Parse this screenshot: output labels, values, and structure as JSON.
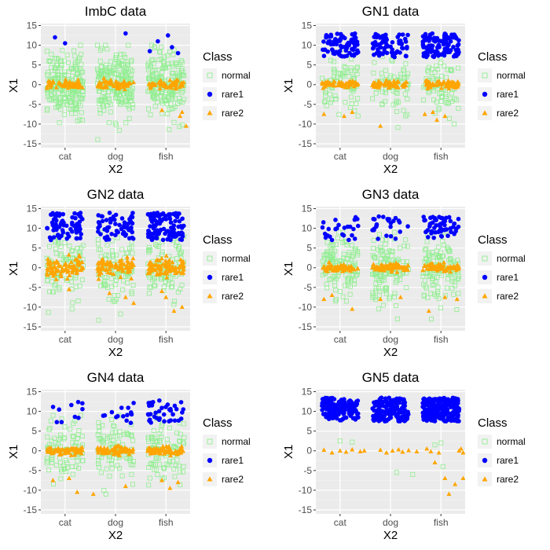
{
  "chart_data": [
    {
      "type": "scatter",
      "title": "ImbC data",
      "xlabel": "X2",
      "ylabel": "X1",
      "categories": [
        "cat",
        "dog",
        "fish"
      ],
      "ylim": [
        -16,
        15.5
      ],
      "yticks": [
        -15,
        -10,
        -5,
        0,
        5,
        10,
        15
      ],
      "legend_title": "Class",
      "series": [
        {
          "name": "normal",
          "shape": "open-square",
          "color": "#90EE90",
          "count_per_category": [
            200,
            200,
            200
          ],
          "spread_sd": 4.0,
          "center": 0,
          "tail_min": -14,
          "tail_max": 10
        },
        {
          "name": "rare1",
          "shape": "circle",
          "color": "#0000FF",
          "values": [
            [
              0.25,
              12
            ],
            [
              0.5,
              10.5
            ],
            [
              2.0,
              13
            ],
            [
              2.8,
              11
            ],
            [
              3.05,
              12.5
            ],
            [
              2.6,
              8.5
            ],
            [
              3.3,
              8
            ],
            [
              3.15,
              9.5
            ]
          ]
        },
        {
          "name": "rare2",
          "shape": "triangle",
          "color": "#FFA500",
          "count_per_category": [
            60,
            60,
            60
          ],
          "spread_sd": 0.5,
          "center": 0,
          "values": [
            [
              2.9,
              -6.5
            ],
            [
              3.35,
              -8
            ],
            [
              3.5,
              -10.5
            ],
            [
              3.4,
              -7
            ]
          ]
        }
      ]
    },
    {
      "type": "scatter",
      "title": "GN1 data",
      "xlabel": "X2",
      "ylabel": "X1",
      "categories": [
        "cat",
        "dog",
        "fish"
      ],
      "ylim": [
        -16,
        15.5
      ],
      "yticks": [
        -15,
        -10,
        -5,
        0,
        5,
        10,
        15
      ],
      "legend_title": "Class",
      "series": [
        {
          "name": "normal",
          "shape": "open-square",
          "color": "#90EE90",
          "count_per_category": [
            70,
            70,
            70
          ],
          "spread_sd": 3.8,
          "center": 0,
          "tail_min": -12,
          "tail_max": 9
        },
        {
          "name": "rare1",
          "shape": "circle",
          "color": "#0000FF",
          "count_per_category": [
            80,
            70,
            120
          ],
          "center": 10.5,
          "range": [
            7,
            13
          ]
        },
        {
          "name": "rare2",
          "shape": "triangle",
          "color": "#FFA500",
          "count_per_category": [
            60,
            60,
            60
          ],
          "spread_sd": 0.5,
          "center": 0,
          "values": [
            [
              0.8,
              -7
            ],
            [
              0.6,
              -8
            ],
            [
              0.1,
              -7.5
            ],
            [
              1.5,
              -10.5
            ],
            [
              2.6,
              -7.5
            ],
            [
              2.8,
              -7
            ],
            [
              3.1,
              -8
            ],
            [
              2.9,
              -9
            ]
          ]
        }
      ]
    },
    {
      "type": "scatter",
      "title": "GN2 data",
      "xlabel": "X2",
      "ylabel": "X1",
      "categories": [
        "cat",
        "dog",
        "fish"
      ],
      "ylim": [
        -16,
        15.5
      ],
      "yticks": [
        -15,
        -10,
        -5,
        0,
        5,
        10,
        15
      ],
      "legend_title": "Class",
      "series": [
        {
          "name": "normal",
          "shape": "open-square",
          "color": "#90EE90",
          "count_per_category": [
            90,
            90,
            90
          ],
          "spread_sd": 4.0,
          "center": 0,
          "tail_min": -14,
          "tail_max": 9
        },
        {
          "name": "rare1",
          "shape": "circle",
          "color": "#0000FF",
          "count_per_category": [
            70,
            60,
            110
          ],
          "center": 10.5,
          "range": [
            7,
            14
          ]
        },
        {
          "name": "rare2",
          "shape": "triangle",
          "color": "#FFA500",
          "count_per_category": [
            90,
            90,
            90
          ],
          "spread_sd": 1.2,
          "center": 0,
          "values": [
            [
              0.6,
              -5.5
            ],
            [
              1.6,
              -6.5
            ],
            [
              2.0,
              -7.5
            ],
            [
              2.2,
              -9
            ],
            [
              3.0,
              -7.5
            ],
            [
              3.2,
              -11
            ],
            [
              3.4,
              -10
            ],
            [
              2.9,
              -6
            ]
          ]
        }
      ]
    },
    {
      "type": "scatter",
      "title": "GN3 data",
      "xlabel": "X2",
      "ylabel": "X1",
      "categories": [
        "cat",
        "dog",
        "fish"
      ],
      "ylim": [
        -16,
        15.5
      ],
      "yticks": [
        -15,
        -10,
        -5,
        0,
        5,
        10,
        15
      ],
      "legend_title": "Class",
      "series": [
        {
          "name": "normal",
          "shape": "open-square",
          "color": "#90EE90",
          "count_per_category": [
            120,
            120,
            120
          ],
          "spread_sd": 4.0,
          "center": 0,
          "tail_min": -13,
          "tail_max": 9
        },
        {
          "name": "rare1",
          "shape": "circle",
          "color": "#0000FF",
          "count_per_category": [
            25,
            25,
            55
          ],
          "center": 10,
          "range": [
            7,
            13
          ]
        },
        {
          "name": "rare2",
          "shape": "triangle",
          "color": "#FFA500",
          "count_per_category": [
            70,
            70,
            70
          ],
          "spread_sd": 0.5,
          "center": 0,
          "values": [
            [
              0.1,
              -8
            ],
            [
              0.3,
              -7
            ],
            [
              0.8,
              -10.5
            ],
            [
              1.5,
              -8
            ],
            [
              2.0,
              -7.5
            ],
            [
              2.7,
              -11
            ],
            [
              3.1,
              -7.5
            ],
            [
              3.4,
              -8
            ]
          ]
        }
      ]
    },
    {
      "type": "scatter",
      "title": "GN4 data",
      "xlabel": "X2",
      "ylabel": "X1",
      "categories": [
        "cat",
        "dog",
        "fish"
      ],
      "ylim": [
        -16,
        15.5
      ],
      "yticks": [
        -15,
        -10,
        -5,
        0,
        5,
        10,
        15
      ],
      "legend_title": "Class",
      "series": [
        {
          "name": "normal",
          "shape": "open-square",
          "color": "#90EE90",
          "count_per_category": [
            90,
            90,
            90
          ],
          "spread_sd": 4.0,
          "center": 0,
          "tail_min": -11,
          "tail_max": 9
        },
        {
          "name": "rare1",
          "shape": "circle",
          "color": "#0000FF",
          "count_per_category": [
            10,
            15,
            40
          ],
          "center": 10,
          "range": [
            7,
            13
          ]
        },
        {
          "name": "rare2",
          "shape": "triangle",
          "color": "#FFA500",
          "count_per_category": [
            70,
            70,
            70
          ],
          "spread_sd": 0.5,
          "center": 0,
          "values": [
            [
              0.2,
              -7.5
            ],
            [
              0.8,
              -10.5
            ],
            [
              1.2,
              -11
            ],
            [
              2.0,
              -9
            ],
            [
              2.9,
              -7.5
            ],
            [
              3.1,
              -9.5
            ],
            [
              3.3,
              -8
            ],
            [
              0.6,
              -7
            ]
          ]
        }
      ]
    },
    {
      "type": "scatter",
      "title": "GN5 data",
      "xlabel": "X2",
      "ylabel": "X1",
      "categories": [
        "cat",
        "dog",
        "fish"
      ],
      "ylim": [
        -16,
        15.5
      ],
      "yticks": [
        -15,
        -10,
        -5,
        0,
        5,
        10,
        15
      ],
      "legend_title": "Class",
      "series": [
        {
          "name": "normal",
          "shape": "open-square",
          "color": "#90EE90",
          "values": [
            [
              0.5,
              2.5
            ],
            [
              0.8,
              2.2
            ],
            [
              1.9,
              -5.5
            ],
            [
              2.3,
              -6
            ],
            [
              2.85,
              1.5
            ],
            [
              3.0,
              2
            ],
            [
              3.05,
              -4
            ]
          ]
        },
        {
          "name": "rare1",
          "shape": "circle",
          "color": "#0000FF",
          "count_per_category": [
            160,
            150,
            220
          ],
          "center": 10.5,
          "range": [
            7.5,
            13.5
          ]
        },
        {
          "name": "rare2",
          "shape": "triangle",
          "color": "#FFA500",
          "values": [
            [
              0.1,
              0.2
            ],
            [
              0.3,
              -0.5
            ],
            [
              0.5,
              0
            ],
            [
              0.65,
              -0.3
            ],
            [
              0.8,
              0.3
            ],
            [
              1.0,
              -0.2
            ],
            [
              1.1,
              0
            ],
            [
              1.5,
              0.2
            ],
            [
              1.65,
              -0.5
            ],
            [
              1.8,
              0
            ],
            [
              1.95,
              0.3
            ],
            [
              2.05,
              -0.3
            ],
            [
              2.2,
              0.1
            ],
            [
              2.4,
              -0.2
            ],
            [
              2.65,
              0.5
            ],
            [
              2.75,
              -0.2
            ],
            [
              2.85,
              -3
            ],
            [
              2.95,
              -0.5
            ],
            [
              3.1,
              -7
            ],
            [
              3.2,
              -11
            ],
            [
              3.35,
              -8.5
            ],
            [
              3.45,
              0
            ],
            [
              3.5,
              0.5
            ],
            [
              3.55,
              -0.5
            ],
            [
              3.55,
              -7
            ]
          ]
        }
      ]
    }
  ]
}
